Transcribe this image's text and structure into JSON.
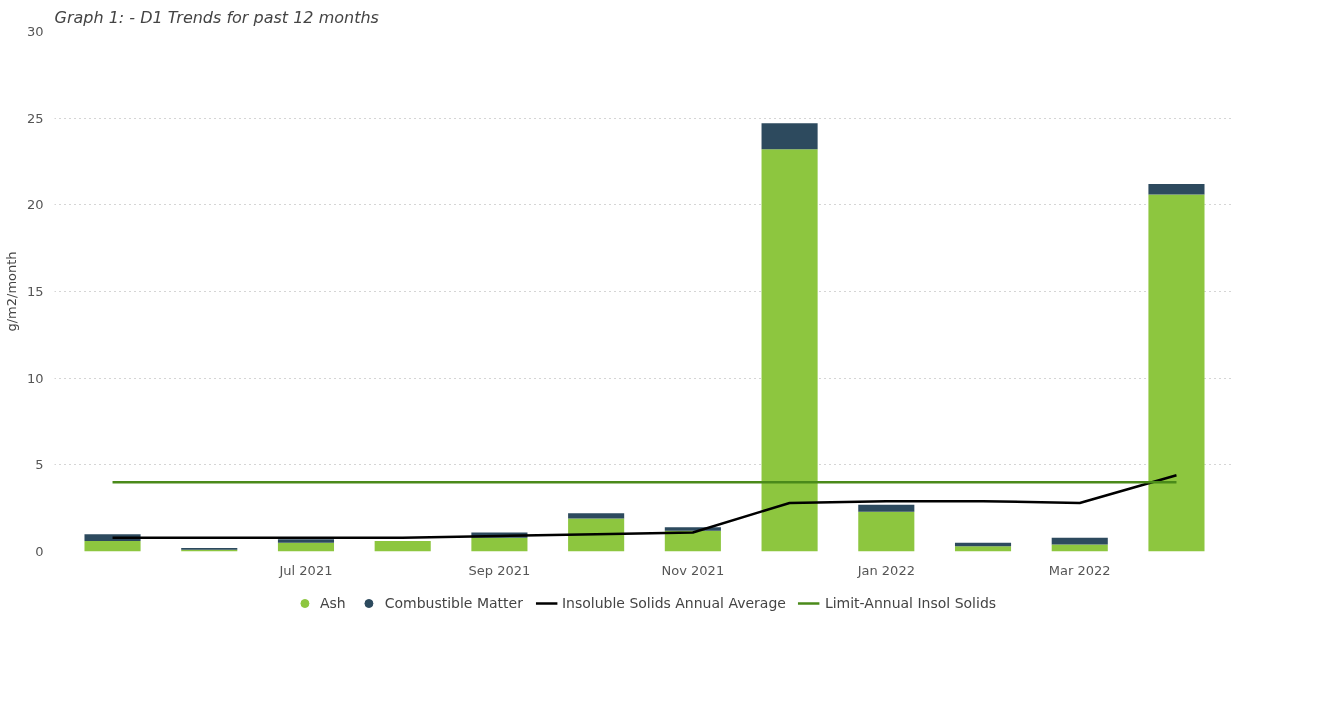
{
  "chart_data": {
    "type": "bar",
    "title": "Graph 1: - D1 Trends for past 12 months",
    "ylabel": "g/m2/month",
    "categories": [
      null,
      null,
      "Jul 2021",
      null,
      "Sep 2021",
      null,
      "Nov 2021",
      null,
      "Jan 2022",
      null,
      "Mar 2022",
      null
    ],
    "stacked": true,
    "series": [
      {
        "name": "Ash",
        "color": "#8dc63f",
        "values": [
          0.6,
          0.1,
          0.5,
          0.6,
          0.8,
          1.9,
          1.2,
          23.2,
          2.3,
          0.3,
          0.4,
          20.6
        ]
      },
      {
        "name": "Combustible Matter",
        "color": "#2d4a5e",
        "values": [
          0.4,
          0.1,
          0.2,
          0,
          0.3,
          0.3,
          0.2,
          1.5,
          0.4,
          0.2,
          0.4,
          0.6
        ]
      },
      {
        "name": "Insoluble Solids Annual Average",
        "type": "line",
        "color": "#000000",
        "values": [
          0.8,
          0.8,
          0.8,
          0.8,
          0.9,
          1.0,
          1.1,
          2.8,
          2.9,
          2.9,
          2.8,
          4.4
        ]
      },
      {
        "name": "Limit-Annual Insol Solids",
        "type": "line",
        "color": "#4a8a1a",
        "values": [
          4,
          4,
          4,
          4,
          4,
          4,
          4,
          4,
          4,
          4,
          4,
          4
        ]
      }
    ],
    "ylim": [
      0,
      30
    ],
    "yticks": [
      0,
      5,
      10,
      15,
      20,
      25,
      30
    ],
    "grid": "y",
    "legend": "bottom",
    "line_style": "solid"
  }
}
